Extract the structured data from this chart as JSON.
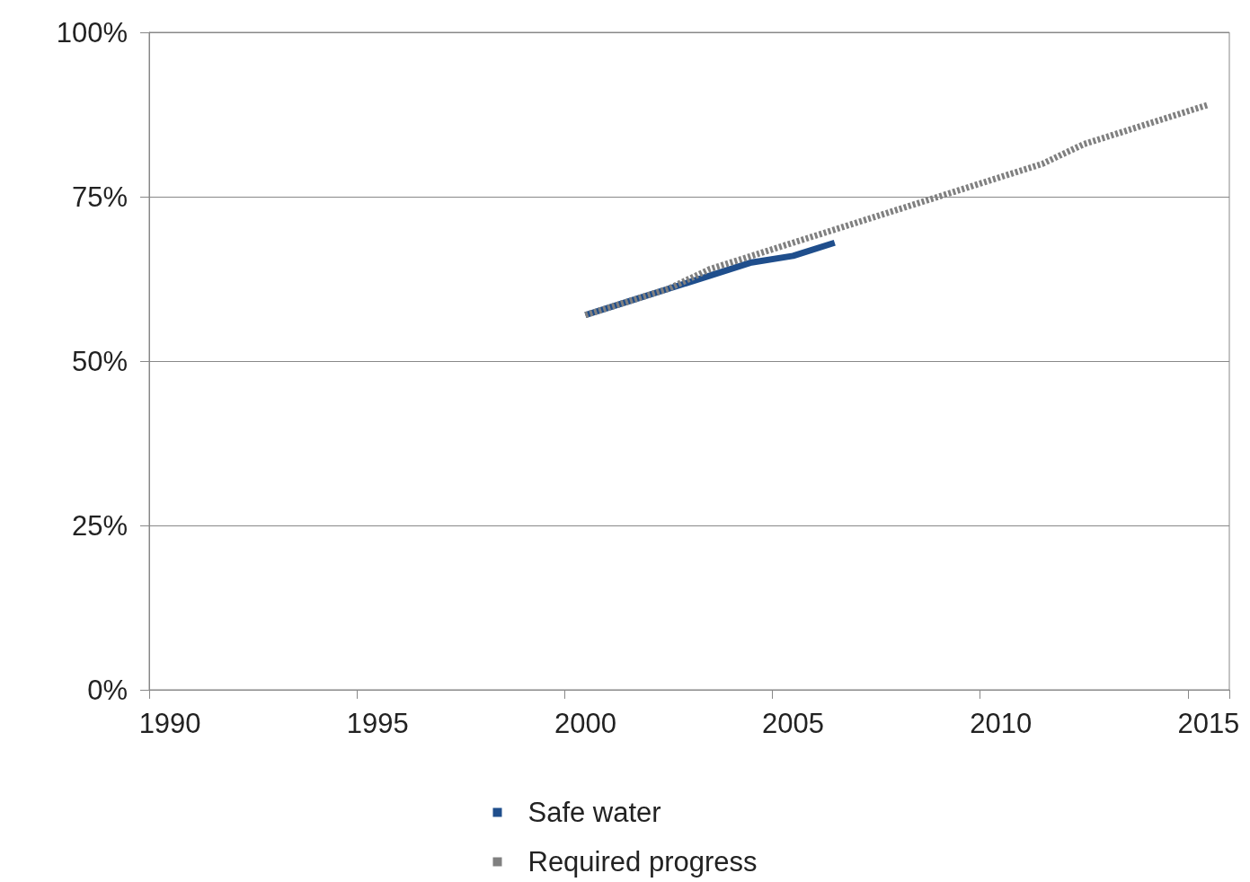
{
  "chart_data": {
    "type": "line",
    "categories": [
      "1990",
      null,
      null,
      null,
      null,
      "1995",
      null,
      null,
      null,
      null,
      "2000",
      null,
      null,
      null,
      null,
      "2005",
      null,
      null,
      null,
      null,
      "2010",
      null,
      null,
      null,
      null,
      "2015"
    ],
    "series": [
      {
        "name": "Safe water",
        "color": "#1f4e8c",
        "line_style": "solid",
        "values": [
          null,
          null,
          null,
          null,
          null,
          null,
          null,
          null,
          null,
          null,
          57,
          59,
          61,
          63,
          65,
          66,
          68,
          null,
          null,
          null,
          null,
          null,
          null,
          null,
          null,
          null
        ]
      },
      {
        "name": "Required progress",
        "color": "#808080",
        "line_style": "dashed",
        "values": [
          null,
          null,
          null,
          null,
          null,
          null,
          null,
          null,
          null,
          null,
          57,
          59,
          61,
          64,
          66,
          68,
          70,
          72,
          74,
          76,
          78,
          80,
          83,
          85,
          87,
          89
        ]
      }
    ],
    "ylim": [
      0,
      100
    ],
    "yticks": [
      {
        "value": 0,
        "label": "0%"
      },
      {
        "value": 25,
        "label": "25%"
      },
      {
        "value": 50,
        "label": "50%"
      },
      {
        "value": 75,
        "label": "75%"
      },
      {
        "value": 100,
        "label": "100%"
      }
    ],
    "grid": "y",
    "legend": "bottom",
    "marker": "none"
  }
}
